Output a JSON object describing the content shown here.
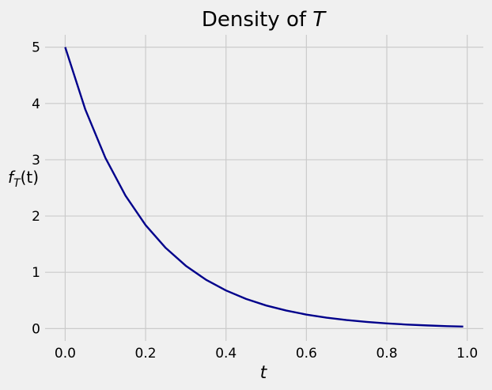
{
  "chart_data": {
    "type": "line",
    "title": "Density of T",
    "title_parts": {
      "text": "Density of ",
      "var": "T"
    },
    "xlabel": "t",
    "ylabel": "f_T(t)",
    "ylabel_parts": {
      "f": "f",
      "sub": "T",
      "arg": "(t)"
    },
    "xlim": [
      -0.05,
      1.04
    ],
    "ylim": [
      -0.22,
      5.22
    ],
    "xticks": [
      0.0,
      0.2,
      0.4,
      0.6,
      0.8,
      1.0
    ],
    "xtick_labels": [
      "0.0",
      "0.2",
      "0.4",
      "0.6",
      "0.8",
      "1.0"
    ],
    "yticks": [
      0,
      1,
      2,
      3,
      4,
      5
    ],
    "ytick_labels": [
      "0",
      "1",
      "2",
      "3",
      "4",
      "5"
    ],
    "grid": true,
    "series": [
      {
        "color": "#00008b",
        "x": [
          0.0,
          0.05,
          0.1,
          0.15,
          0.2,
          0.25,
          0.3,
          0.35,
          0.4,
          0.45,
          0.5,
          0.55,
          0.6,
          0.65,
          0.7,
          0.75,
          0.8,
          0.85,
          0.9,
          0.95,
          0.99
        ],
        "y": [
          5.0,
          3.894,
          3.033,
          2.362,
          1.839,
          1.433,
          1.116,
          0.869,
          0.677,
          0.527,
          0.41,
          0.32,
          0.249,
          0.194,
          0.151,
          0.118,
          0.092,
          0.071,
          0.056,
          0.043,
          0.035
        ]
      }
    ]
  }
}
